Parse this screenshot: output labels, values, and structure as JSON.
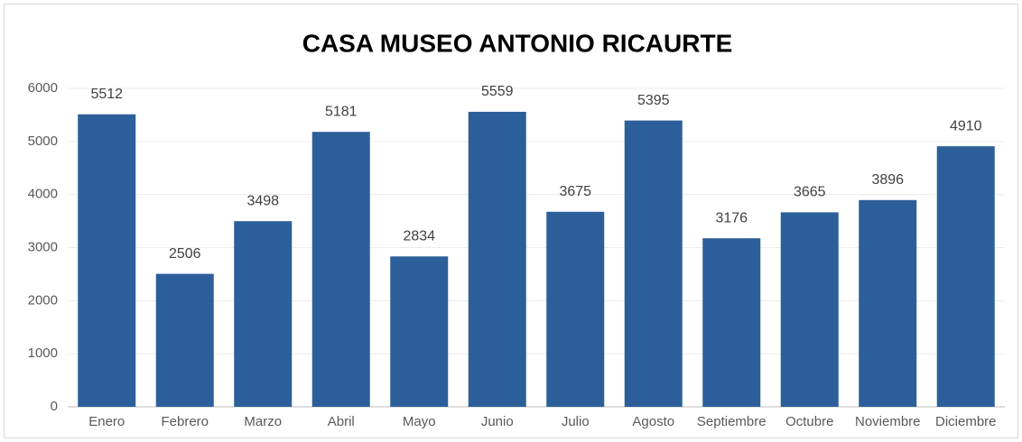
{
  "chart_data": {
    "type": "bar",
    "title": "CASA MUSEO ANTONIO RICAURTE",
    "categories": [
      "Enero",
      "Febrero",
      "Marzo",
      "Abril",
      "Mayo",
      "Junio",
      "Julio",
      "Agosto",
      "Septiembre",
      "Octubre",
      "Noviembre",
      "Diciembre"
    ],
    "values": [
      5512,
      2506,
      3498,
      5181,
      2834,
      5559,
      3675,
      5395,
      3176,
      3665,
      3896,
      4910
    ],
    "color": "#2c5f9a",
    "ylim": [
      0,
      6000
    ],
    "yticks": [
      0,
      1000,
      2000,
      3000,
      4000,
      5000,
      6000
    ],
    "grid": true
  }
}
